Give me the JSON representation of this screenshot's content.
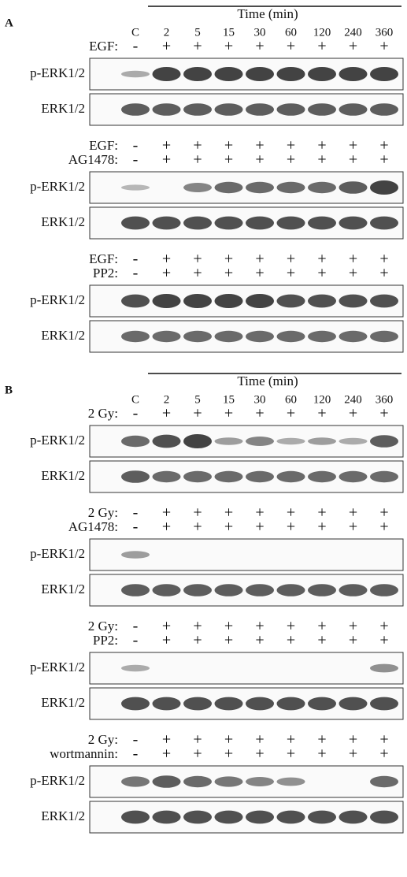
{
  "panels": [
    {
      "label": "A",
      "time_label": "Time (min)",
      "lanes": [
        "C",
        "2",
        "5",
        "15",
        "30",
        "60",
        "120",
        "240",
        "360"
      ],
      "groups": [
        {
          "treatments": [
            {
              "name": "EGF:",
              "signs": [
                "-",
                "+",
                "+",
                "+",
                "+",
                "+",
                "+",
                "+",
                "+"
              ]
            }
          ],
          "blots": [
            "p-ERK1/2",
            "ERK1/2"
          ]
        },
        {
          "treatments": [
            {
              "name": "EGF:",
              "signs": [
                "-",
                "+",
                "+",
                "+",
                "+",
                "+",
                "+",
                "+",
                "+"
              ]
            },
            {
              "name": "AG1478:",
              "signs": [
                "-",
                "+",
                "+",
                "+",
                "+",
                "+",
                "+",
                "+",
                "+"
              ]
            }
          ],
          "blots": [
            "p-ERK1/2",
            "ERK1/2"
          ]
        },
        {
          "treatments": [
            {
              "name": "EGF:",
              "signs": [
                "-",
                "+",
                "+",
                "+",
                "+",
                "+",
                "+",
                "+",
                "+"
              ]
            },
            {
              "name": "PP2:",
              "signs": [
                "-",
                "+",
                "+",
                "+",
                "+",
                "+",
                "+",
                "+",
                "+"
              ]
            }
          ],
          "blots": [
            "p-ERK1/2",
            "ERK1/2"
          ]
        }
      ]
    },
    {
      "label": "B",
      "time_label": "Time (min)",
      "lanes": [
        "C",
        "2",
        "5",
        "15",
        "30",
        "60",
        "120",
        "240",
        "360"
      ],
      "groups": [
        {
          "treatments": [
            {
              "name": "2 Gy:",
              "signs": [
                "-",
                "+",
                "+",
                "+",
                "+",
                "+",
                "+",
                "+",
                "+"
              ]
            }
          ],
          "blots": [
            "p-ERK1/2",
            "ERK1/2"
          ]
        },
        {
          "treatments": [
            {
              "name": "2 Gy:",
              "signs": [
                "-",
                "+",
                "+",
                "+",
                "+",
                "+",
                "+",
                "+",
                "+"
              ]
            },
            {
              "name": "AG1478:",
              "signs": [
                "-",
                "+",
                "+",
                "+",
                "+",
                "+",
                "+",
                "+",
                "+"
              ]
            }
          ],
          "blots": [
            "p-ERK1/2",
            "ERK1/2"
          ]
        },
        {
          "treatments": [
            {
              "name": "2 Gy:",
              "signs": [
                "-",
                "+",
                "+",
                "+",
                "+",
                "+",
                "+",
                "+",
                "+"
              ]
            },
            {
              "name": "PP2:",
              "signs": [
                "-",
                "+",
                "+",
                "+",
                "+",
                "+",
                "+",
                "+",
                "+"
              ]
            }
          ],
          "blots": [
            "p-ERK1/2",
            "ERK1/2"
          ]
        },
        {
          "treatments": [
            {
              "name": "2 Gy:",
              "signs": [
                "-",
                "+",
                "+",
                "+",
                "+",
                "+",
                "+",
                "+",
                "+"
              ]
            },
            {
              "name": "wortmannin:",
              "signs": [
                "-",
                "+",
                "+",
                "+",
                "+",
                "+",
                "+",
                "+",
                "+"
              ]
            }
          ],
          "blots": [
            "p-ERK1/2",
            "ERK1/2"
          ]
        }
      ]
    }
  ]
}
